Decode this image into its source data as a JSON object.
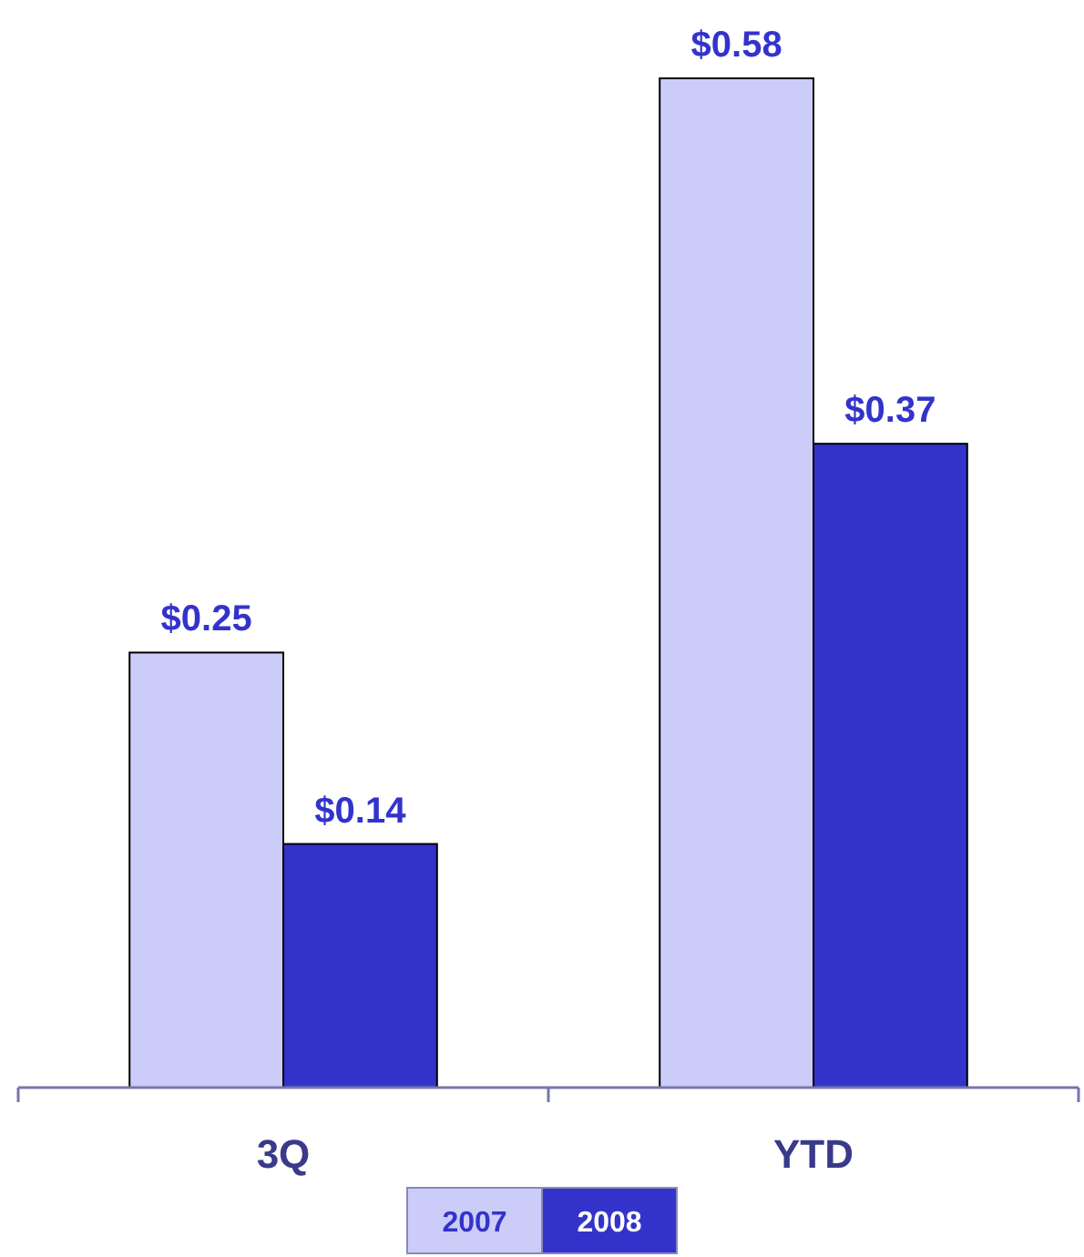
{
  "chart_data": {
    "type": "bar",
    "categories": [
      "3Q",
      "YTD"
    ],
    "series": [
      {
        "name": "2007",
        "color": "#ccccf8",
        "values": [
          0.25,
          0.58
        ],
        "value_labels": [
          "$0.25",
          "$0.58"
        ]
      },
      {
        "name": "2008",
        "color": "#3333cc",
        "values": [
          0.14,
          0.37
        ],
        "value_labels": [
          "$0.14",
          "$0.37"
        ]
      }
    ],
    "legend": "bottom"
  }
}
